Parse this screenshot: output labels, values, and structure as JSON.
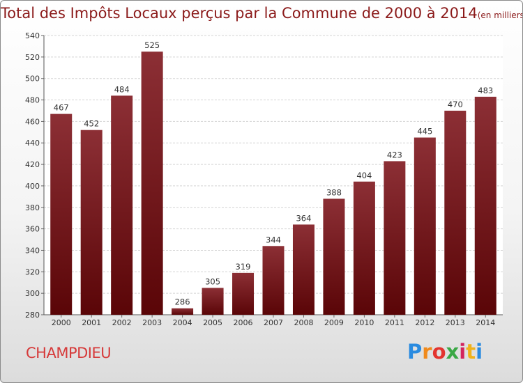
{
  "title": "Total des Impôts Locaux perçus par la Commune de 2000 à 2014",
  "unit_note": "(en milliers d'€)",
  "commune": "CHAMPDIEU",
  "logo_text": "Proxiti",
  "colors": {
    "bar_top": "#8c2f35",
    "bar_bottom": "#5a0507",
    "title": "#8b1a1a",
    "commune": "#d63a3a"
  },
  "chart_data": {
    "type": "bar",
    "title": "Total des Impôts Locaux perçus par la Commune de 2000 à 2014",
    "xlabel": "",
    "ylabel": "",
    "categories": [
      "2000",
      "2001",
      "2002",
      "2003",
      "2004",
      "2005",
      "2006",
      "2007",
      "2008",
      "2009",
      "2010",
      "2011",
      "2012",
      "2013",
      "2014"
    ],
    "values": [
      467,
      452,
      484,
      525,
      286,
      305,
      319,
      344,
      364,
      388,
      404,
      423,
      445,
      470,
      483
    ],
    "ylim": [
      280,
      540
    ],
    "yticks": [
      280,
      300,
      320,
      340,
      360,
      380,
      400,
      420,
      440,
      460,
      480,
      500,
      520,
      540
    ],
    "grid": true
  }
}
